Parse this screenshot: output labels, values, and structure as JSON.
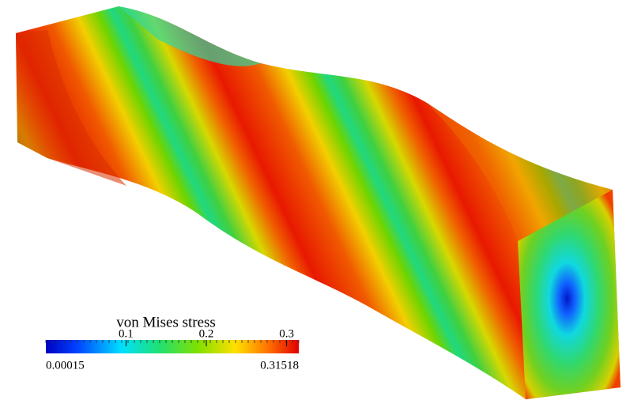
{
  "colorbar": {
    "title": "von Mises stress",
    "range": [
      0.00015,
      0.31518
    ],
    "ticks": [
      0.1,
      0.2,
      0.3
    ]
  }
}
